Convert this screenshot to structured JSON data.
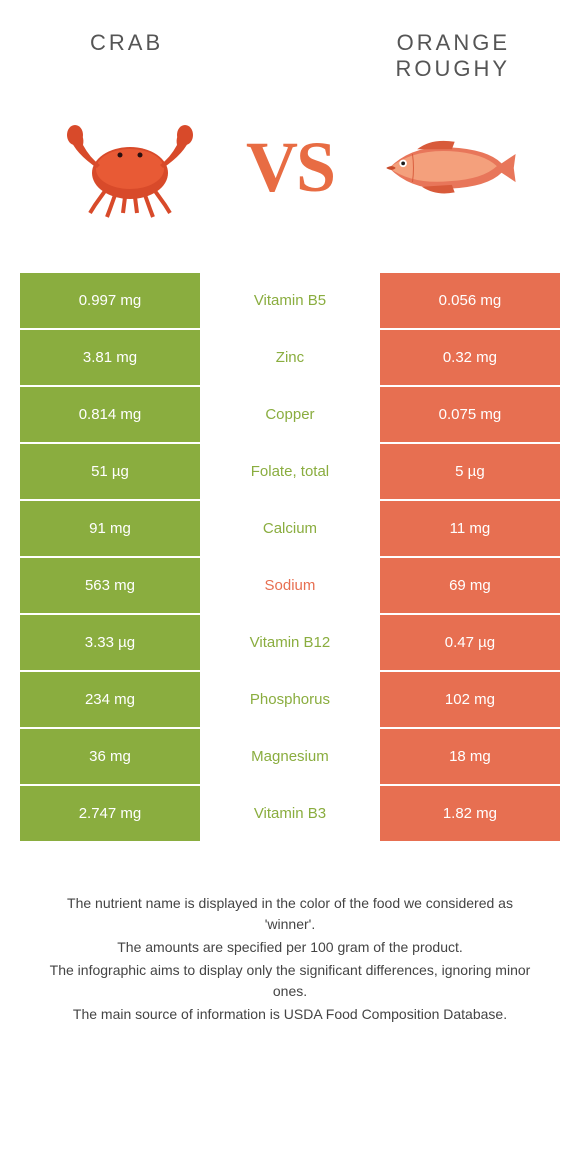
{
  "titles": {
    "left": "CRAB",
    "right": "ORANGE ROUGHY"
  },
  "vs_text": "VS",
  "colors": {
    "left_bg": "#8aad3f",
    "right_bg": "#e76f51",
    "left_text": "#8aad3f",
    "right_text": "#e76f51",
    "row_gap": "#ffffff"
  },
  "rows": [
    {
      "left": "0.997 mg",
      "mid": "Vitamin B5",
      "right": "0.056 mg",
      "winner": "left"
    },
    {
      "left": "3.81 mg",
      "mid": "Zinc",
      "right": "0.32 mg",
      "winner": "left"
    },
    {
      "left": "0.814 mg",
      "mid": "Copper",
      "right": "0.075 mg",
      "winner": "left"
    },
    {
      "left": "51 µg",
      "mid": "Folate, total",
      "right": "5 µg",
      "winner": "left"
    },
    {
      "left": "91 mg",
      "mid": "Calcium",
      "right": "11 mg",
      "winner": "left"
    },
    {
      "left": "563 mg",
      "mid": "Sodium",
      "right": "69 mg",
      "winner": "right"
    },
    {
      "left": "3.33 µg",
      "mid": "Vitamin B12",
      "right": "0.47 µg",
      "winner": "left"
    },
    {
      "left": "234 mg",
      "mid": "Phosphorus",
      "right": "102 mg",
      "winner": "left"
    },
    {
      "left": "36 mg",
      "mid": "Magnesium",
      "right": "18 mg",
      "winner": "left"
    },
    {
      "left": "2.747 mg",
      "mid": "Vitamin B3",
      "right": "1.82 mg",
      "winner": "left"
    }
  ],
  "footer": [
    "The nutrient name is displayed in the color of the food we considered as 'winner'.",
    "The amounts are specified per 100 gram of the product.",
    "The infographic aims to display only the significant differences, ignoring minor ones.",
    "The main source of information is USDA Food Composition Database."
  ]
}
